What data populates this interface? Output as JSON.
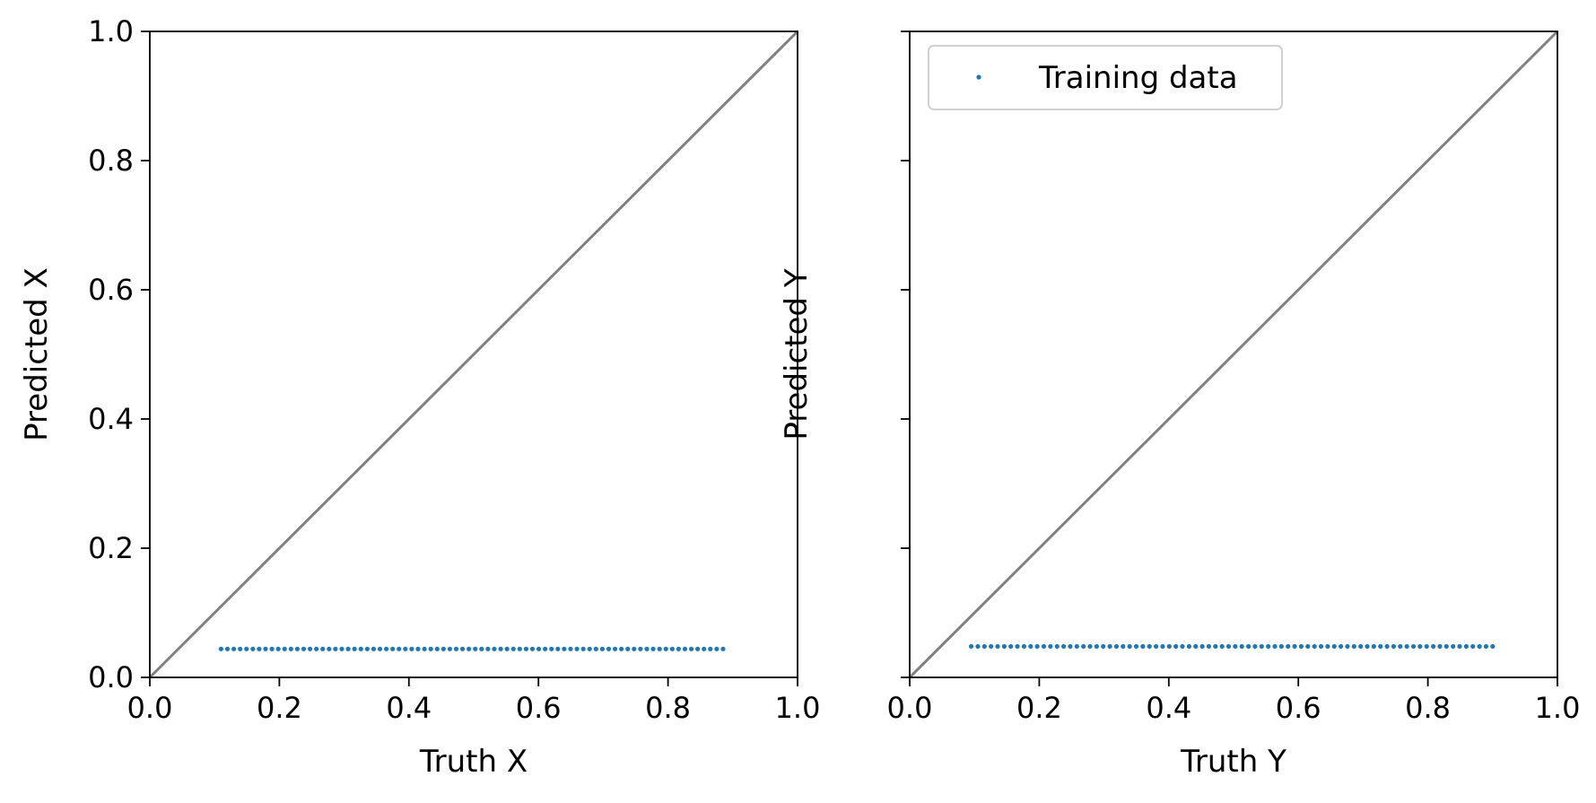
{
  "chart_data": [
    {
      "type": "scatter",
      "xlabel": "Truth X",
      "ylabel": "Predicted X",
      "xlim": [
        0.0,
        1.0
      ],
      "ylim": [
        0.0,
        1.0
      ],
      "xticks": [
        "0.0",
        "0.2",
        "0.4",
        "0.6",
        "0.8",
        "1.0"
      ],
      "yticks": [
        "0.0",
        "0.2",
        "0.4",
        "0.6",
        "0.8",
        "1.0"
      ],
      "show_ytick_labels": true,
      "grid": false,
      "reference_line": {
        "from": [
          0,
          0
        ],
        "to": [
          1,
          1
        ],
        "color": "#808080"
      },
      "series": [
        {
          "x_start": 0.11,
          "x_end": 0.885,
          "count": 80,
          "y": 0.044,
          "color": "#1f77b4"
        }
      ]
    },
    {
      "type": "scatter",
      "xlabel": "Truth Y",
      "ylabel": "Predicted Y",
      "xlim": [
        0.0,
        1.0
      ],
      "ylim": [
        0.0,
        1.0
      ],
      "xticks": [
        "0.0",
        "0.2",
        "0.4",
        "0.6",
        "0.8",
        "1.0"
      ],
      "yticks": [
        "0.0",
        "0.2",
        "0.4",
        "0.6",
        "0.8",
        "1.0"
      ],
      "show_ytick_labels": false,
      "grid": false,
      "legend": {
        "entries": [
          "Training data"
        ],
        "location": "upper-left"
      },
      "reference_line": {
        "from": [
          0,
          0
        ],
        "to": [
          1,
          1
        ],
        "color": "#808080"
      },
      "series": [
        {
          "name": "Training data",
          "x_start": 0.095,
          "x_end": 0.9,
          "count": 80,
          "y": 0.048,
          "color": "#1f77b4"
        }
      ]
    }
  ]
}
